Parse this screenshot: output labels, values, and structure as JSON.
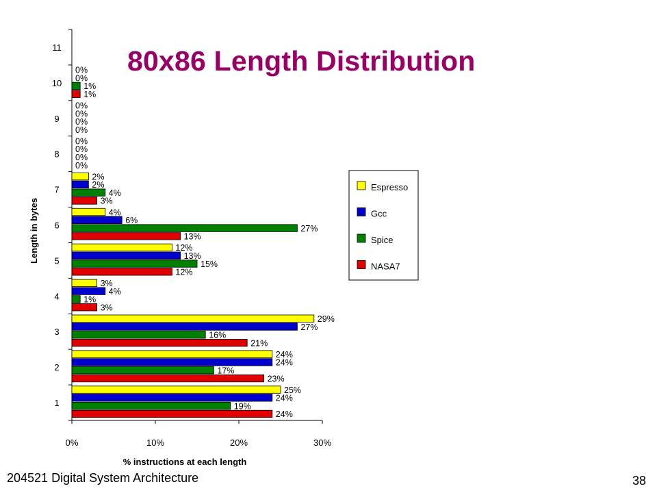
{
  "slide": {
    "title": "80x86 Length Distribution",
    "footer_left": "204521 Digital System Architecture",
    "page_number": "38"
  },
  "colors": {
    "title": "#990066",
    "Espresso": "#ffff00",
    "Gcc": "#0000cc",
    "Spice": "#008000",
    "NASA7": "#e00000"
  },
  "chart_data": {
    "type": "bar",
    "orientation": "horizontal",
    "categories": [
      "1",
      "2",
      "3",
      "4",
      "5",
      "6",
      "7",
      "8",
      "9",
      "10",
      "11"
    ],
    "series": [
      {
        "name": "Espresso",
        "values": [
          25,
          24,
          29,
          3,
          12,
          4,
          2,
          0,
          0,
          0,
          null
        ],
        "labels": [
          "25%",
          "24%",
          "29%",
          "3%",
          "12%",
          "4%",
          "2%",
          "0%",
          "0%",
          "0%",
          ""
        ]
      },
      {
        "name": "Gcc",
        "values": [
          24,
          24,
          27,
          4,
          13,
          6,
          2,
          0,
          0,
          0,
          null
        ],
        "labels": [
          "24%",
          "24%",
          "27%",
          "4%",
          "13%",
          "6%",
          "2%",
          "0%",
          "0%",
          "0%",
          ""
        ]
      },
      {
        "name": "Spice",
        "values": [
          19,
          17,
          16,
          1,
          15,
          27,
          4,
          0,
          0,
          1,
          null
        ],
        "labels": [
          "19%",
          "17%",
          "16%",
          "1%",
          "15%",
          "27%",
          "4%",
          "0%",
          "0%",
          "1%",
          ""
        ]
      },
      {
        "name": "NASA7",
        "values": [
          24,
          23,
          21,
          3,
          12,
          13,
          3,
          0,
          0,
          1,
          null
        ],
        "labels": [
          "24%",
          "23%",
          "21%",
          "3%",
          "12%",
          "13%",
          "3%",
          "0%",
          "0%",
          "1%",
          ""
        ]
      }
    ],
    "xlabel": "% instructions at each length",
    "ylabel": "Length in bytes",
    "xlim": [
      0,
      30
    ],
    "xticks": [
      "0%",
      "10%",
      "20%",
      "30%"
    ],
    "grid": false,
    "legend_position": "right"
  }
}
